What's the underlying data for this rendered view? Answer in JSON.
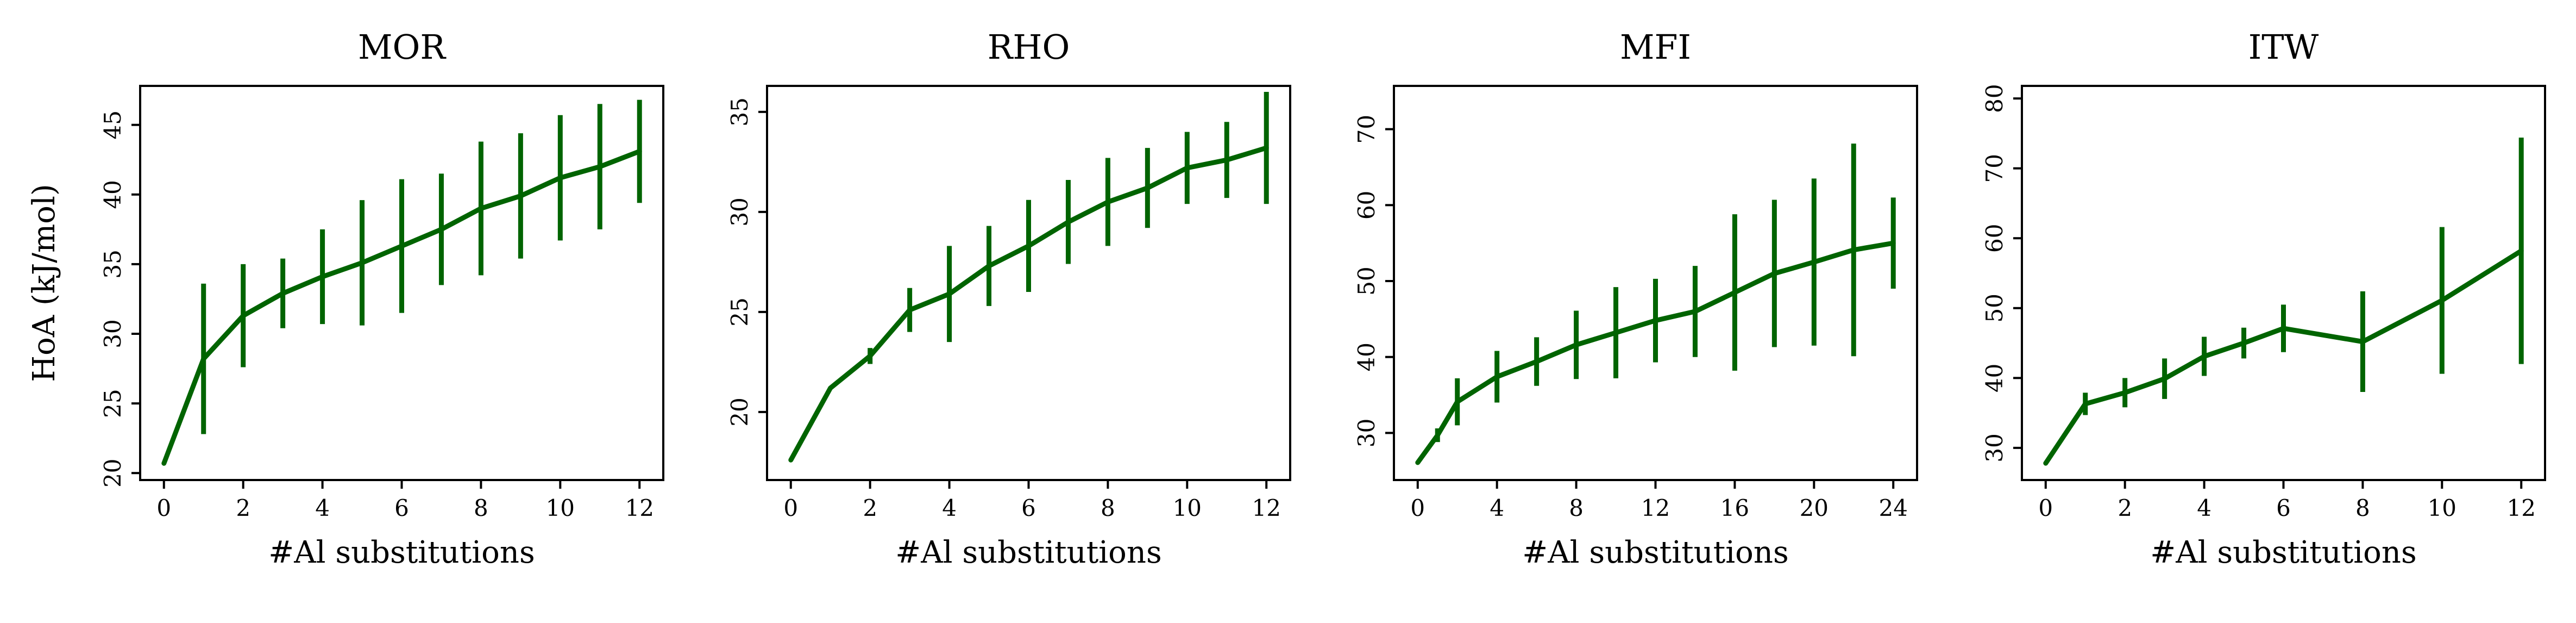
{
  "figure": {
    "line_color": "#006400",
    "frame_color": "#000000"
  },
  "chart_data": [
    {
      "type": "line",
      "title": "MOR",
      "xlabel": "#Al substitutions",
      "ylabel": "HoA (kJ/mol)",
      "xlim": [
        -0.6,
        12.6
      ],
      "ylim": [
        19.5,
        47.8
      ],
      "xticks": [
        0,
        2,
        4,
        6,
        8,
        10,
        12
      ],
      "yticks": [
        20,
        25,
        30,
        35,
        40,
        45
      ],
      "x": [
        0,
        1,
        2,
        3,
        4,
        5,
        6,
        7,
        8,
        9,
        10,
        11,
        12
      ],
      "y": [
        20.7,
        28.2,
        31.3,
        32.9,
        34.1,
        35.1,
        36.3,
        37.5,
        39.0,
        39.9,
        41.2,
        42.0,
        43.1
      ],
      "err": [
        0,
        5.4,
        3.7,
        2.5,
        3.4,
        4.5,
        4.8,
        4.0,
        4.8,
        4.5,
        4.5,
        4.5,
        3.7
      ]
    },
    {
      "type": "line",
      "title": "RHO",
      "xlabel": "#Al substitutions",
      "ylabel": "",
      "xlim": [
        -0.6,
        12.6
      ],
      "ylim": [
        16.6,
        36.3
      ],
      "xticks": [
        0,
        2,
        4,
        6,
        8,
        10,
        12
      ],
      "yticks": [
        20,
        25,
        30,
        35
      ],
      "x": [
        0,
        1,
        2,
        3,
        4,
        5,
        6,
        7,
        8,
        9,
        10,
        11,
        12
      ],
      "y": [
        17.6,
        21.2,
        22.8,
        25.1,
        25.9,
        27.3,
        28.3,
        29.5,
        30.5,
        31.2,
        32.2,
        32.6,
        33.2
      ],
      "err": [
        0,
        0,
        0.4,
        1.1,
        2.4,
        2.0,
        2.3,
        2.1,
        2.2,
        2.0,
        1.8,
        1.9,
        2.8
      ]
    },
    {
      "type": "line",
      "title": "MFI",
      "xlabel": "#Al substitutions",
      "ylabel": "",
      "xlim": [
        -1.2,
        25.2
      ],
      "ylim": [
        23.8,
        75.7
      ],
      "xticks": [
        0,
        4,
        8,
        12,
        16,
        20,
        24
      ],
      "yticks": [
        30,
        40,
        50,
        60,
        70
      ],
      "x": [
        0,
        1,
        2,
        4,
        6,
        8,
        10,
        12,
        14,
        16,
        18,
        20,
        22,
        24
      ],
      "y": [
        26.1,
        29.7,
        34.1,
        37.4,
        39.4,
        41.6,
        43.2,
        44.8,
        46.0,
        48.5,
        51.0,
        52.5,
        54.1,
        55.0
      ],
      "err": [
        0,
        0.9,
        3.1,
        3.4,
        3.2,
        4.5,
        6.0,
        5.5,
        6.0,
        10.3,
        9.7,
        11.0,
        14.0,
        6.0
      ]
    },
    {
      "type": "line",
      "title": "ITW",
      "xlabel": "#Al substitutions",
      "ylabel": "",
      "xlim": [
        -0.6,
        12.6
      ],
      "ylim": [
        25.4,
        81.8
      ],
      "xticks": [
        0,
        2,
        4,
        6,
        8,
        10,
        12
      ],
      "yticks": [
        30,
        40,
        50,
        60,
        70,
        80
      ],
      "x": [
        0,
        1,
        2,
        3,
        4,
        5,
        6,
        8,
        10,
        12
      ],
      "y": [
        27.8,
        36.3,
        37.9,
        39.9,
        43.1,
        45.0,
        47.1,
        45.2,
        51.1,
        58.2
      ],
      "err": [
        0,
        1.6,
        2.1,
        2.9,
        2.8,
        2.2,
        3.4,
        7.2,
        10.5,
        16.2
      ]
    }
  ]
}
